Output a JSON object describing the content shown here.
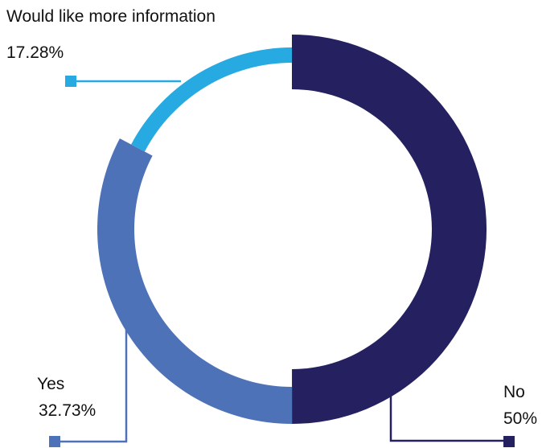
{
  "chart_data": {
    "type": "pie",
    "style": "donut",
    "slices": [
      {
        "label": "No",
        "value": 50,
        "value_label": "50%",
        "color": "#252161"
      },
      {
        "label": "Yes",
        "value": 32.73,
        "value_label": "32.73%",
        "color": "#4E72B8"
      },
      {
        "label": "Would like more information",
        "value": 17.28,
        "value_label": "17.28%",
        "color": "#27AAE1"
      }
    ],
    "legend": "none",
    "labels_placement": "outside with leader lines"
  }
}
